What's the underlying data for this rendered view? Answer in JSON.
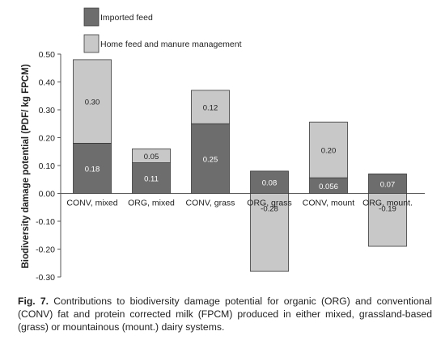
{
  "chart_data": {
    "type": "bar",
    "stacked": true,
    "categories": [
      "CONV, mixed",
      "ORG, mixed",
      "CONV, grass",
      "ORG, grass",
      "CONV, mount",
      "ORG, mount."
    ],
    "series": [
      {
        "name": "Imported feed",
        "color": "#6d6d6d",
        "values": [
          0.18,
          0.11,
          0.25,
          0.08,
          0.056,
          0.07
        ],
        "labels": [
          "0.18",
          "0.11",
          "0.25",
          "0.08",
          "0.056",
          "0.07"
        ],
        "label_color": "#ffffff"
      },
      {
        "name": "Home feed and manure management",
        "color": "#c8c8c8",
        "values": [
          0.3,
          0.05,
          0.12,
          -0.28,
          0.2,
          -0.19
        ],
        "labels": [
          "0.30",
          "0.05",
          "0.12",
          "-0.28",
          "0.20",
          "-0.19"
        ],
        "label_color": "#222222"
      }
    ],
    "ylabel": "Biodiversity damage potential (PDF/ kg FPCM)",
    "xlabel": "",
    "ylim": [
      -0.3,
      0.5
    ],
    "yticks": [
      0.5,
      0.4,
      0.3,
      0.2,
      0.1,
      0.0,
      -0.1,
      -0.2,
      -0.3
    ],
    "ytick_labels": [
      "0.50",
      "0.40",
      "0.30",
      "0.20",
      "0.10",
      "0.00",
      "-0.10",
      "-0.20",
      "-0.30"
    ],
    "grid": false,
    "legend_position": "top-left"
  },
  "caption": {
    "figure_label": "Fig. 7.",
    "text": "Contributions to biodiversity damage potential for organic (ORG) and conventional (CONV) fat and protein corrected milk (FPCM) produced in either mixed, grassland-based (grass) or mountainous (mount.) dairy systems."
  }
}
